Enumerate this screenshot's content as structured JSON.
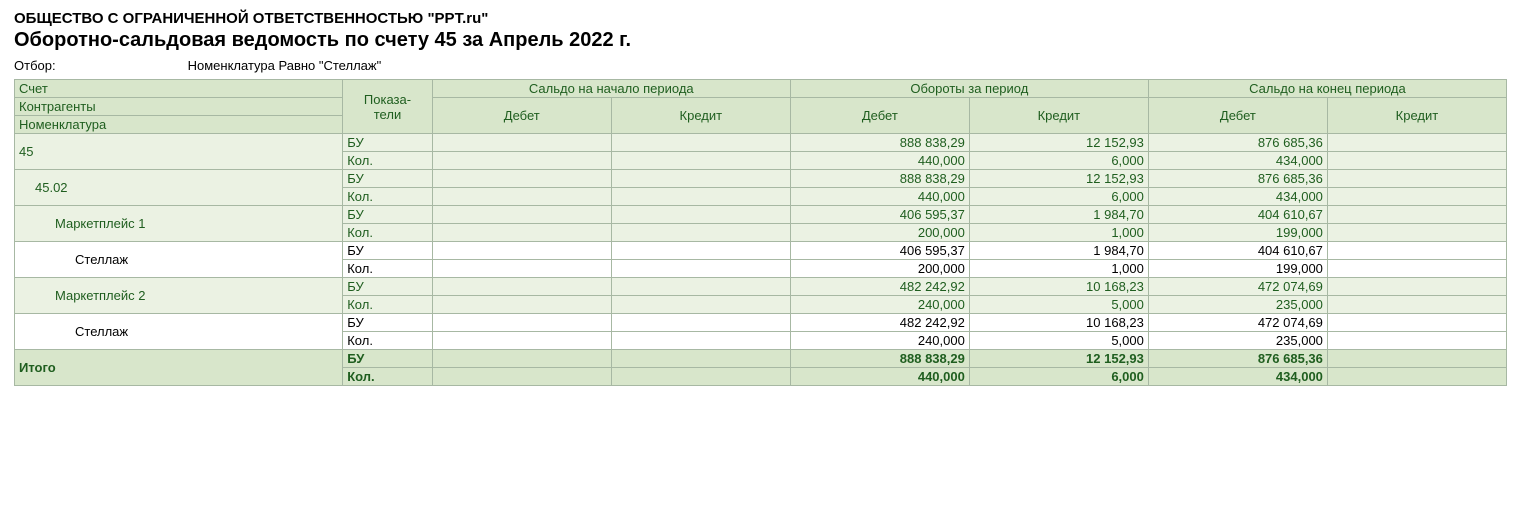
{
  "company": "ОБЩЕСТВО С ОГРАНИЧЕННОЙ ОТВЕТСТВЕННОСТЬЮ \"PPT.ru\"",
  "title": "Оборотно-сальдовая ведомость по счету 45 за Апрель 2022 г.",
  "filter": {
    "label": "Отбор:",
    "value": "Номенклатура Равно \"Стеллаж\""
  },
  "columns": {
    "account": "Счет",
    "counterparties": "Контрагенты",
    "nomenclature": "Номенклатура",
    "indicators": "Показа-\nтели",
    "opening": "Сальдо на начало периода",
    "turnover": "Обороты за период",
    "closing": "Сальдо на конец периода",
    "debit": "Дебет",
    "credit": "Кредит"
  },
  "indicators": {
    "bu": "БУ",
    "kol": "Кол."
  },
  "styling": {
    "header_bg": "#d8e6cb",
    "group_bg": "#ebf2e3",
    "white_bg": "#ffffff",
    "border_color": "#a7b8a3",
    "text_green": "#1f5e1f",
    "col_widths_pct": [
      22,
      6,
      12,
      12,
      12,
      12,
      12,
      12
    ]
  },
  "rows": [
    {
      "label": "45",
      "indent": 0,
      "style": "green",
      "bu": {
        "ob": "",
        "oc": "",
        "td": "888 838,29",
        "tc": "12 152,93",
        "cd": "876 685,36",
        "cc": ""
      },
      "kol": {
        "ob": "",
        "oc": "",
        "td": "440,000",
        "tc": "6,000",
        "cd": "434,000",
        "cc": ""
      }
    },
    {
      "label": "45.02",
      "indent": 1,
      "style": "green",
      "bu": {
        "ob": "",
        "oc": "",
        "td": "888 838,29",
        "tc": "12 152,93",
        "cd": "876 685,36",
        "cc": ""
      },
      "kol": {
        "ob": "",
        "oc": "",
        "td": "440,000",
        "tc": "6,000",
        "cd": "434,000",
        "cc": ""
      }
    },
    {
      "label": "Маркетплейс 1",
      "indent": 2,
      "style": "green",
      "bu": {
        "ob": "",
        "oc": "",
        "td": "406 595,37",
        "tc": "1 984,70",
        "cd": "404 610,67",
        "cc": ""
      },
      "kol": {
        "ob": "",
        "oc": "",
        "td": "200,000",
        "tc": "1,000",
        "cd": "199,000",
        "cc": ""
      }
    },
    {
      "label": "Стеллаж",
      "indent": 3,
      "style": "white",
      "bu": {
        "ob": "",
        "oc": "",
        "td": "406 595,37",
        "tc": "1 984,70",
        "cd": "404 610,67",
        "cc": ""
      },
      "kol": {
        "ob": "",
        "oc": "",
        "td": "200,000",
        "tc": "1,000",
        "cd": "199,000",
        "cc": ""
      }
    },
    {
      "label": "Маркетплейс 2",
      "indent": 2,
      "style": "green",
      "bu": {
        "ob": "",
        "oc": "",
        "td": "482 242,92",
        "tc": "10 168,23",
        "cd": "472 074,69",
        "cc": ""
      },
      "kol": {
        "ob": "",
        "oc": "",
        "td": "240,000",
        "tc": "5,000",
        "cd": "235,000",
        "cc": ""
      }
    },
    {
      "label": "Стеллаж",
      "indent": 3,
      "style": "white",
      "bu": {
        "ob": "",
        "oc": "",
        "td": "482 242,92",
        "tc": "10 168,23",
        "cd": "472 074,69",
        "cc": ""
      },
      "kol": {
        "ob": "",
        "oc": "",
        "td": "240,000",
        "tc": "5,000",
        "cd": "235,000",
        "cc": ""
      }
    }
  ],
  "totals": {
    "label": "Итого",
    "bu": {
      "ob": "",
      "oc": "",
      "td": "888 838,29",
      "tc": "12 152,93",
      "cd": "876 685,36",
      "cc": ""
    },
    "kol": {
      "ob": "",
      "oc": "",
      "td": "440,000",
      "tc": "6,000",
      "cd": "434,000",
      "cc": ""
    }
  }
}
